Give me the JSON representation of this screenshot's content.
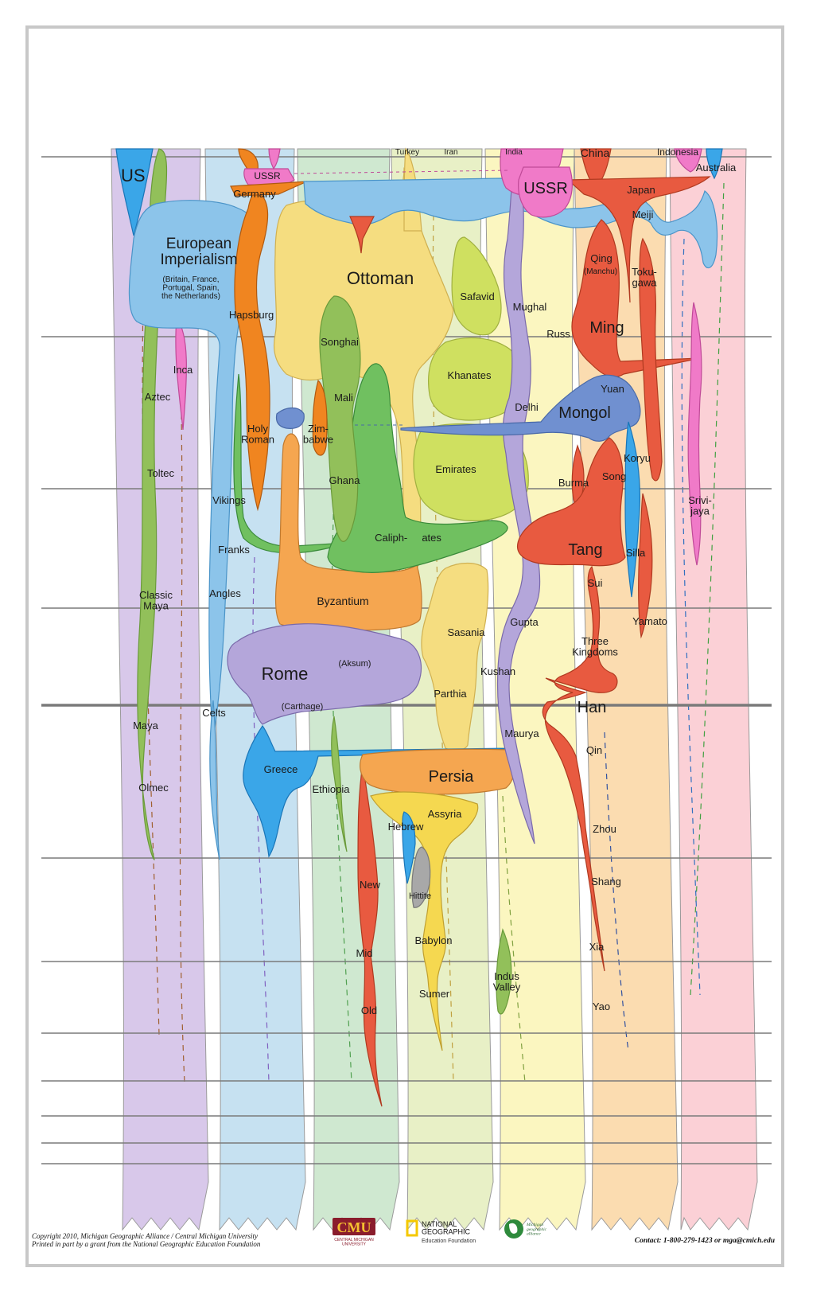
{
  "colors": {
    "americas": "#d8c8ea",
    "europe": "#c6e1f1",
    "africa": "#cfe8d0",
    "middle_east": "#e8f0c6",
    "south_asia": "#fbf6c0",
    "east_asia": "#fbdcb0",
    "oceania": "#fbd0d6",
    "blue": "#5aa6e0",
    "light_blue": "#8cc4ea",
    "orange": "#f08520",
    "yellow": "#f5dd80",
    "lime": "#cfe060",
    "green": "#70c060",
    "olive": "#92c05a",
    "red": "#e85a40",
    "pink": "#f07ac8",
    "lavender": "#b4a6da",
    "tan": "#f5a650",
    "gray": "#a8a8a8",
    "steel": "#7090d0",
    "grid": "#7a7a7a"
  },
  "labels": {
    "us": "US",
    "european_imperialism": "European\nImperialism",
    "european_note": "(Britain, France,\nPortugal, Spain,\nthe Netherlands)",
    "ussr_small": "USSR",
    "germany": "Germany",
    "turkey": "Turkey",
    "iran": "Iran",
    "india": "India",
    "china": "China",
    "indonesia": "Indonesia",
    "australia": "Australia",
    "ussr_big": "USSR",
    "japan": "Japan",
    "meiji": "Meiji",
    "ottoman": "Ottoman",
    "safavid": "Safavid",
    "mughal": "Mughal",
    "qing": "Qing",
    "manchu": "(Manchu)",
    "tokugawa": "Toku-\ngawa",
    "hapsburg": "Hapsburg",
    "songhai": "Songhai",
    "russ": "Russ",
    "ming": "Ming",
    "inca": "Inca",
    "khanates": "Khanates",
    "mali": "Mali",
    "aztec": "Aztec",
    "delhi": "Delhi",
    "yuan": "Yuan",
    "mongol": "Mongol",
    "holy_roman": "Holy\nRoman",
    "zimbabwe": "Zim-\nbabwe",
    "koryu": "Koryu",
    "emirates": "Emirates",
    "toltec": "Toltec",
    "song": "Song",
    "burma": "Burma",
    "ghana": "Ghana",
    "vikings": "Vikings",
    "srivijaya": "Srivi-\njaya",
    "caliphates": "Caliph-     ates",
    "franks": "Franks",
    "tang": "Tang",
    "silla": "Silla",
    "sui": "Sui",
    "classic_maya": "Classic\nMaya",
    "angles": "Angles",
    "byzantium": "Byzantium",
    "gupta": "Gupta",
    "yamato": "Yamato",
    "sasania": "Sasania",
    "three_kingdoms": "Three\nKingdoms",
    "rome": "Rome",
    "aksum": "(Aksum)",
    "kushan": "Kushan",
    "parthia": "Parthia",
    "carthage": "(Carthage)",
    "han": "Han",
    "celts": "Celts",
    "maya": "Maya",
    "maurya": "Maurya",
    "qin": "Qin",
    "greece": "Greece",
    "persia": "Persia",
    "olmec": "Olmec",
    "ethiopia": "Ethiopia",
    "assyria": "Assyria",
    "zhou": "Zhou",
    "hebrew": "Hebrew",
    "new": "New",
    "shang": "Shang",
    "hittite": "Hittite",
    "babylon": "Babylon",
    "xia": "Xia",
    "mid": "Mid",
    "indus_valley": "Indus\nValley",
    "sumer": "Sumer",
    "old": "Old",
    "yao": "Yao"
  },
  "footer": {
    "copyright": "Copyright 2010,  Michigan Geographic Alliance / Central Michigan University",
    "funding": "Printed in part by a grant from the National Geographic Education Foundation",
    "cmu": "CMU",
    "cmu_sub": "CENTRAL MICHIGAN\nUNIVERSITY",
    "natgeo": "NATIONAL\nGEOGRAPHIC",
    "natgeo_sub": "Education Foundation",
    "mga": "Michigan\ngeographic\nalliance",
    "contact": "Contact: 1-800-279-1423 or mga@cmich.edu"
  }
}
